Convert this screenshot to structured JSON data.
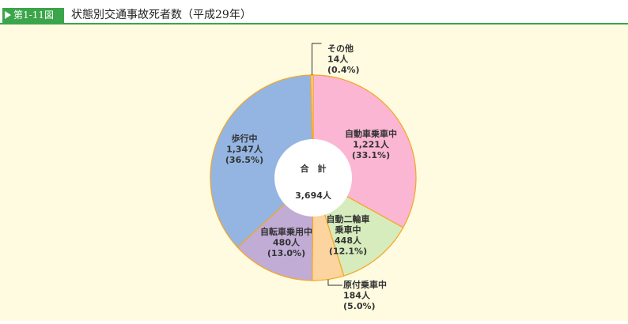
{
  "figure": {
    "number": "第1-11図",
    "title": "状態別交通事故死者数（平成29年）"
  },
  "chart_data": {
    "type": "pie",
    "donut": true,
    "center_label": "合　計",
    "center_value": "3,694人",
    "slices": [
      {
        "name": "自動車乗車中",
        "value": 1221,
        "value_label": "1,221人",
        "pct_label": "(33.1%)",
        "color": "#fbb6d3"
      },
      {
        "name": "自動二輪車乗車中",
        "name_lines": [
          "自動二輪車",
          "乗車中"
        ],
        "value": 448,
        "value_label": "448人",
        "pct_label": "(12.1%)",
        "color": "#d6ecbd"
      },
      {
        "name": "原付乗車中",
        "value": 184,
        "value_label": "184人",
        "pct_label": "(5.0%)",
        "color": "#fcd4a0"
      },
      {
        "name": "自転車乗用中",
        "value": 480,
        "value_label": "480人",
        "pct_label": "(13.0%)",
        "color": "#c1acd6"
      },
      {
        "name": "歩行中",
        "value": 1347,
        "value_label": "1,347人",
        "pct_label": "(36.5%)",
        "color": "#94b5e2"
      },
      {
        "name": "その他",
        "value": 14,
        "value_label": "14人",
        "pct_label": "(0.4%)",
        "color": "#fcd4a0"
      }
    ],
    "slice_border_color": "#f5a623"
  }
}
